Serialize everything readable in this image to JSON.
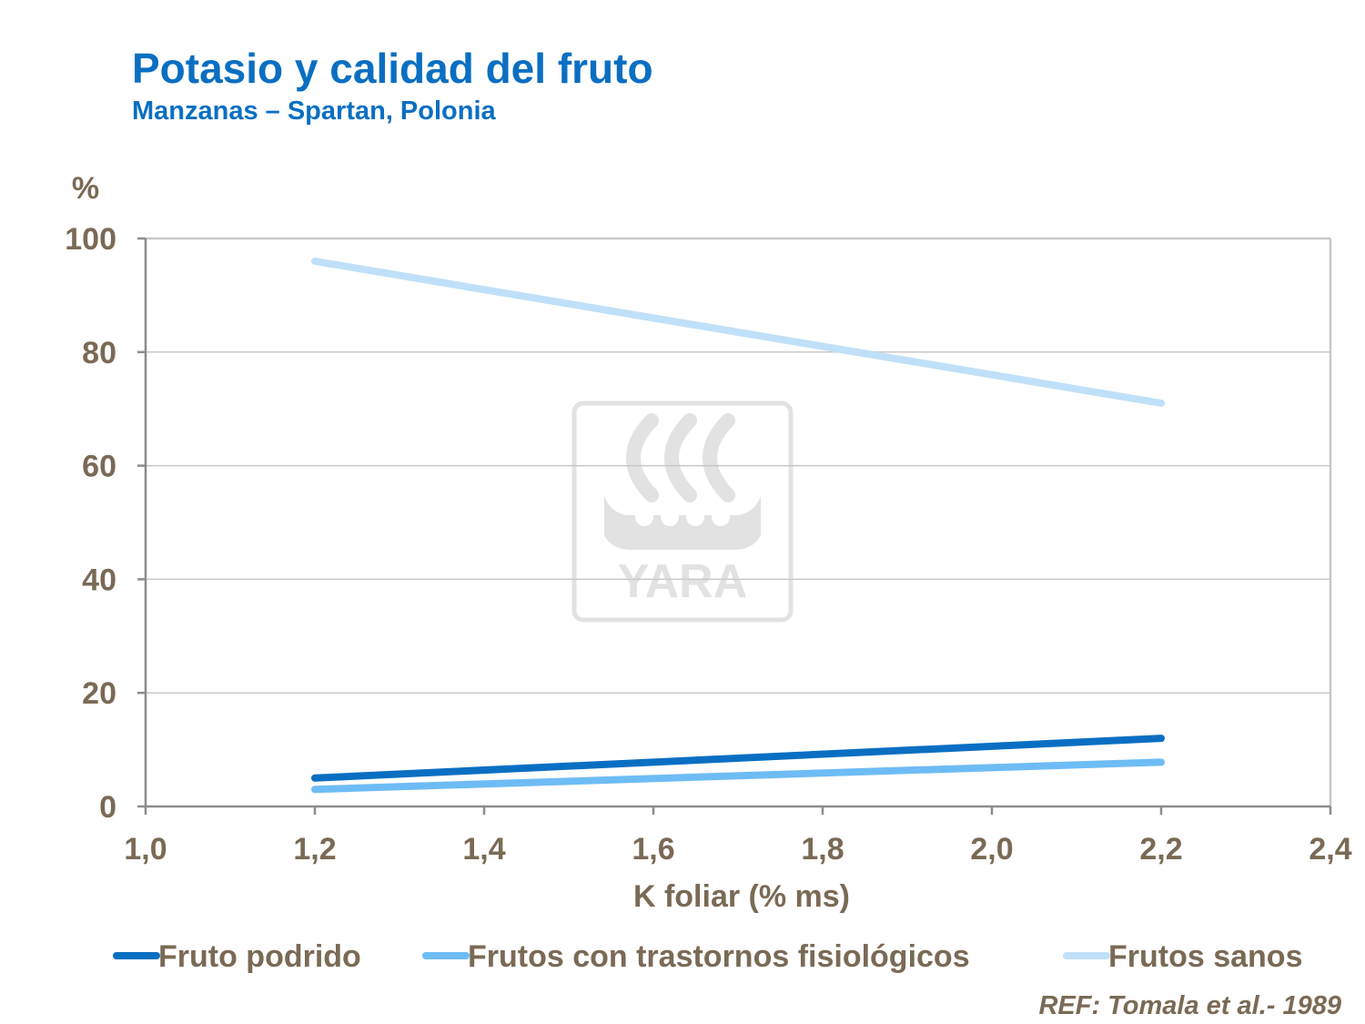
{
  "header": {
    "title": "Potasio y calidad del fruto",
    "subtitle": "Manzanas – Spartan, Polonia"
  },
  "watermark": {
    "text": "YARA",
    "icon": "yara-viking-ship-logo-icon"
  },
  "reference": "REF: Tomala et al.- 1989",
  "colors": {
    "title": "#0a6fc2",
    "text": "#7a6a55",
    "axis": "#8c8c8c",
    "grid": "#c8c8c8",
    "watermark": "#e2e2e2"
  },
  "chart_data": {
    "type": "line",
    "title": "Potasio y calidad del fruto",
    "subtitle": "Manzanas – Spartan, Polonia",
    "xlabel": "K foliar (% ms)",
    "ylabel": "%",
    "xlim": [
      1.0,
      2.4
    ],
    "ylim": [
      0,
      100
    ],
    "x_ticks": [
      "1,0",
      "1,2",
      "1,4",
      "1,6",
      "1,8",
      "2,0",
      "2,2",
      "2,4"
    ],
    "y_ticks": [
      "0",
      "20",
      "40",
      "60",
      "80",
      "100"
    ],
    "grid": true,
    "legend_position": "bottom",
    "series": [
      {
        "name": "Fruto podrido",
        "color": "#0a6fc2",
        "x": [
          1.2,
          2.2
        ],
        "y": [
          5,
          12
        ]
      },
      {
        "name": "Frutos con trastornos fisiológicos",
        "color": "#6ebcf5",
        "x": [
          1.2,
          2.2
        ],
        "y": [
          3,
          7.8
        ]
      },
      {
        "name": "Frutos sanos",
        "color": "#bfe0f8",
        "x": [
          1.2,
          2.2
        ],
        "y": [
          96,
          71
        ]
      }
    ]
  }
}
